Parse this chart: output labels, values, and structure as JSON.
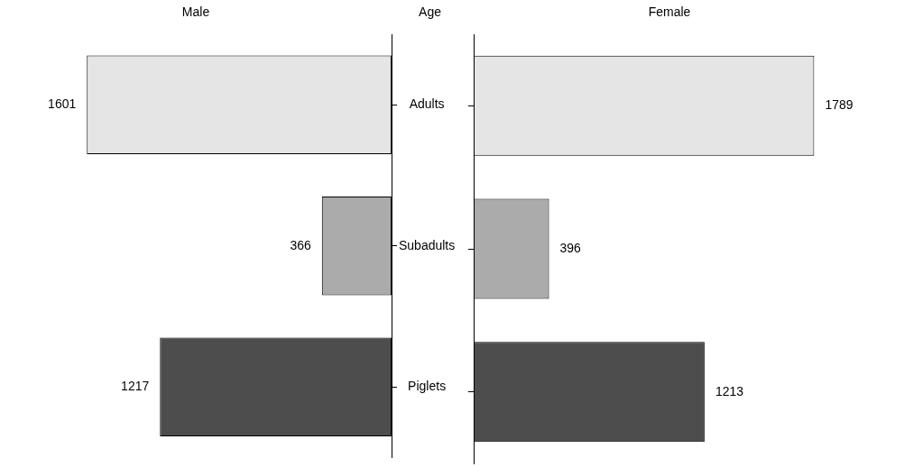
{
  "chart_data": [
    {
      "type": "bar",
      "orientation": "horizontal",
      "title": "Male",
      "ylabel": "Age",
      "categories": [
        "Adults",
        "Subadults",
        "Piglets"
      ],
      "values": [
        1601,
        366,
        1217
      ],
      "colors": [
        "#e5e5e5",
        "#ababab",
        "#4d4d4d"
      ],
      "data_labels": true,
      "tick_labels": "y"
    },
    {
      "type": "bar",
      "orientation": "horizontal",
      "title": "Female",
      "categories": [
        null,
        null,
        null
      ],
      "values": [
        1789,
        396,
        1213
      ],
      "colors": [
        "#e5e5e5",
        "#ababab",
        "#4d4d4d"
      ],
      "data_labels": true,
      "tick_labels": false
    }
  ]
}
